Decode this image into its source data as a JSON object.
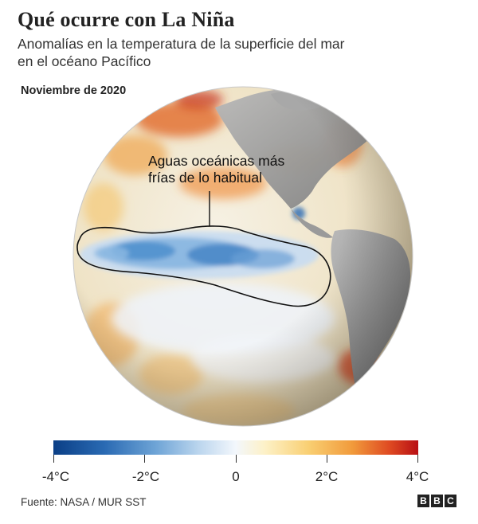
{
  "header": {
    "title": "Qué ocurre con La Niña",
    "subtitle_line1": "Anomalías en la temperatura de la superficie del mar",
    "subtitle_line2": "en el océano Pacífico",
    "date": "Noviembre de 2020"
  },
  "annotation": {
    "line1": "Aguas oceánicas más",
    "line2": "frías de lo habitual"
  },
  "legend": {
    "ticks": [
      "-4°C",
      "-2°C",
      "0",
      "2°C",
      "4°C"
    ],
    "colors": {
      "cold_max": "#0b3f86",
      "neutral": "#f3f7fc",
      "warm_max": "#b80f14"
    }
  },
  "footer": {
    "source": "Fuente: NASA / MUR SST",
    "logo_letters": [
      "B",
      "B",
      "C"
    ]
  },
  "map_colors": {
    "land": "#8f8f8f",
    "ocean_neutral": "#f3ecd8",
    "warm": "#e8772e",
    "cold": "#4a8ccc"
  }
}
